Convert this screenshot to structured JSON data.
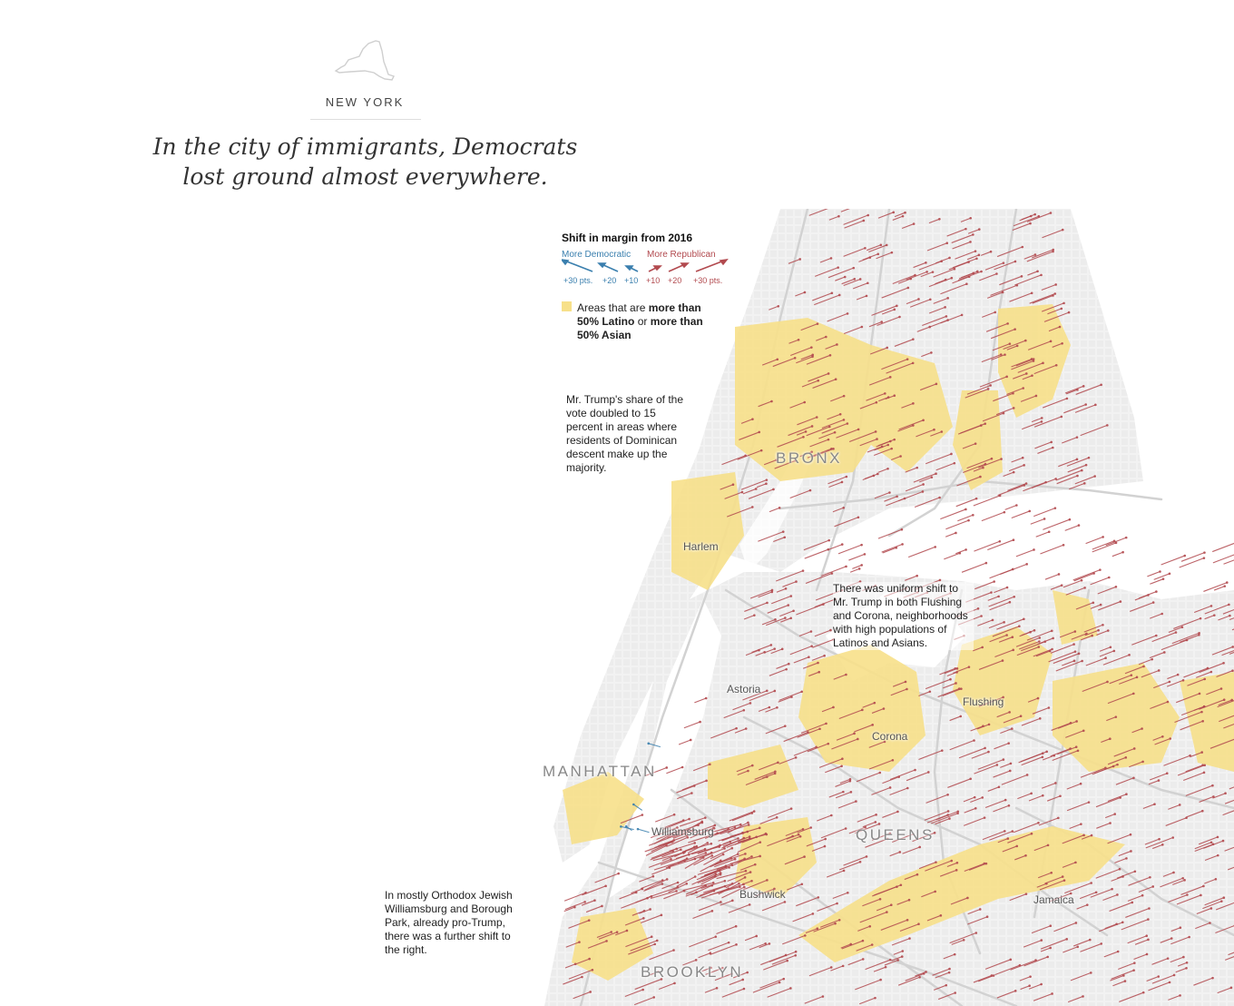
{
  "section": {
    "state_icon": "new-york-state-outline-icon",
    "label": "NEW YORK"
  },
  "headline": "In the city of immigrants, Democrats lost ground almost everywhere.",
  "legend": {
    "title": "Shift in margin from 2016",
    "more_democratic": "More Democratic",
    "more_republican": "More Republican",
    "dem_ticks": [
      "+30 pts.",
      "+20",
      "+10"
    ],
    "rep_ticks": [
      "+10",
      "+20",
      "+30 pts."
    ],
    "areas_prefix": "Areas that are ",
    "areas_bold1": "more than 50% Latino",
    "areas_mid": " or ",
    "areas_bold2": "more than 50% Asian"
  },
  "annotations": {
    "dominican": "Mr. Trump's share of the vote doubled to 15 percent in areas where residents of Dominican descent make up the majority.",
    "flushing_corona": "There was uniform shift to Mr. Trump in both Flushing and Corona, neighborhoods with high populations of Latinos and Asians.",
    "williamsburg": "In mostly Orthodox Jewish Williamsburg and Borough Park, already pro-Trump, there was a further shift to the right."
  },
  "places": {
    "harlem": "Harlem",
    "astoria": "Astoria",
    "flushing": "Flushing",
    "corona": "Corona",
    "williamsburg": "Williamsburg",
    "bushwick": "Bushwick",
    "jamaica": "Jamaica"
  },
  "boroughs": {
    "bronx": "BRONX",
    "manhattan": "MANHATTAN",
    "queens": "QUEENS",
    "brooklyn": "BROOKLYN"
  },
  "colors": {
    "democratic": "#3a7fae",
    "republican": "#b24a4f",
    "majority_area": "#f7e08a",
    "water": "#ffffff",
    "land": "#f1f1f1",
    "roads": "#d2d2d2"
  }
}
